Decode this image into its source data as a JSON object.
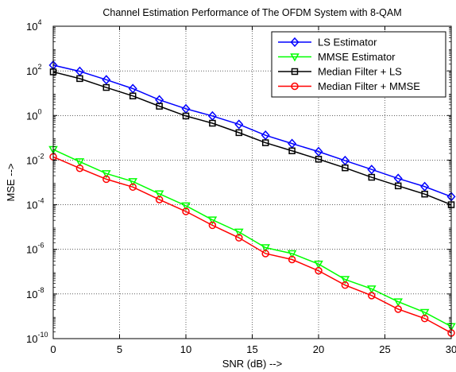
{
  "chart_data": {
    "type": "line",
    "title": "Channel Estimation Performance of The OFDM System with 8-QAM",
    "xlabel": "SNR (dB) -->",
    "ylabel": "MSE -->",
    "xlim": [
      0,
      30
    ],
    "ylim_exponent": [
      -10,
      4
    ],
    "yscale": "log",
    "grid": true,
    "legend_position": "top-right",
    "x_ticks": [
      0,
      5,
      10,
      15,
      20,
      25,
      30
    ],
    "y_tick_base": "10",
    "y_tick_exponents": [
      -10,
      -8,
      -6,
      -4,
      -2,
      0,
      2,
      4
    ],
    "x": [
      0,
      2,
      4,
      6,
      8,
      10,
      12,
      14,
      16,
      18,
      20,
      22,
      24,
      26,
      28,
      30
    ],
    "series": [
      {
        "name": "LS Estimator",
        "color": "#0000ff",
        "marker": "diamond",
        "values": [
          180,
          95,
          40,
          16,
          5,
          2,
          0.95,
          0.4,
          0.13,
          0.055,
          0.024,
          0.0095,
          0.0038,
          0.0015,
          0.00065,
          0.00023
        ]
      },
      {
        "name": "MMSE Estimator",
        "color": "#00ff00",
        "marker": "triangle-down",
        "values": [
          0.03,
          0.0085,
          0.0025,
          0.0011,
          0.00031,
          9e-05,
          2.1e-05,
          6e-06,
          1.2e-06,
          6.5e-07,
          2.2e-07,
          4.5e-08,
          1.7e-08,
          4.5e-09,
          1.5e-09,
          3.5e-10
        ]
      },
      {
        "name": "Median Filter + LS",
        "color": "#000000",
        "marker": "square",
        "values": [
          90,
          45,
          18,
          7.5,
          2.6,
          0.95,
          0.45,
          0.17,
          0.06,
          0.026,
          0.011,
          0.0045,
          0.0017,
          0.0007,
          0.0003,
          0.0001
        ]
      },
      {
        "name": "Median Filter + MMSE",
        "color": "#ff0000",
        "marker": "circle",
        "values": [
          0.014,
          0.0043,
          0.0014,
          0.00062,
          0.00017,
          5e-05,
          1.2e-05,
          3.3e-06,
          6.5e-07,
          3.5e-07,
          1.1e-07,
          2.5e-08,
          8.5e-09,
          2.1e-09,
          8e-10,
          1.8e-10
        ]
      }
    ]
  }
}
